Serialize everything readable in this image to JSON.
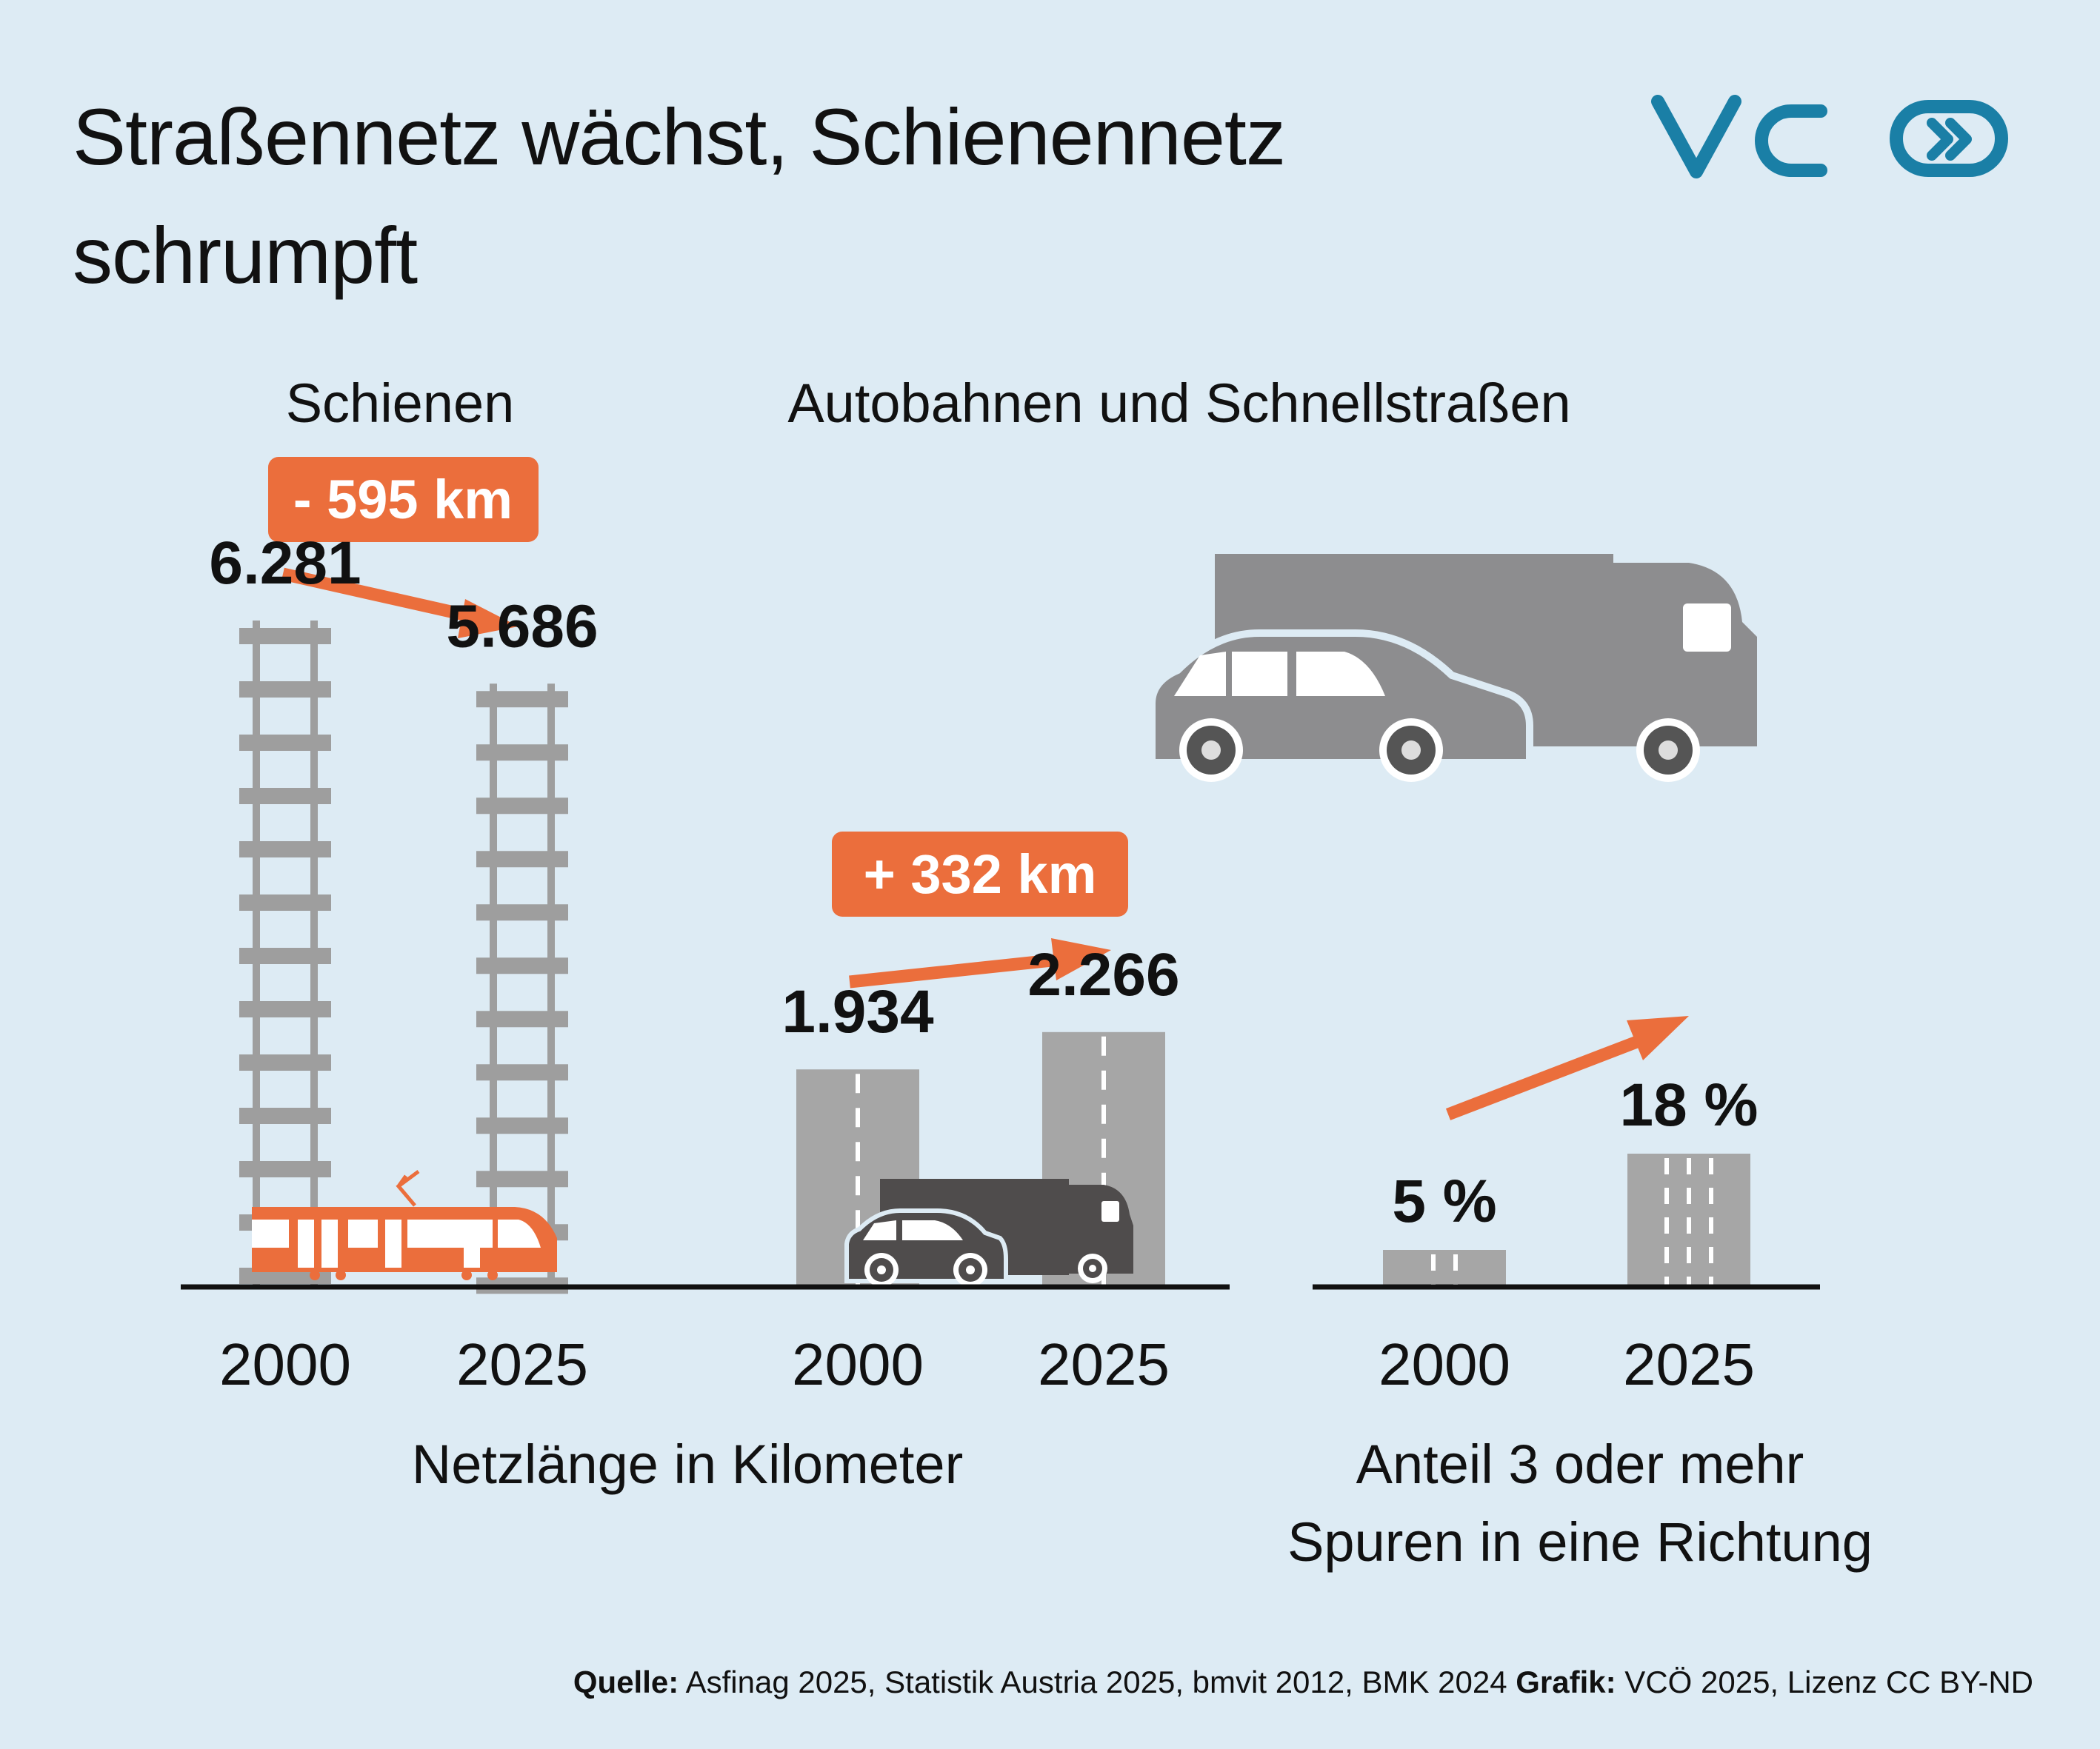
{
  "title": "Straßennetz wächst, Schienennetz schrumpft",
  "logo": {
    "text": "VCÖ",
    "color": "#1a7fa6",
    "icon": "double-chevron-icon"
  },
  "colors": {
    "background": "#ddebf4",
    "accent": "#eb6e3c",
    "bar": "#a6a6a6",
    "dark": "#4f4c4c",
    "track": "#9e9e9e"
  },
  "chart_data": [
    {
      "type": "bar",
      "title": "Schienen",
      "categories": [
        "2000",
        "2025"
      ],
      "values": [
        6281,
        5686
      ],
      "value_labels": [
        "6.281",
        "5.686"
      ],
      "change_label": "- 595 km",
      "icon": "train-icon"
    },
    {
      "type": "bar",
      "title": "Autobahnen und Schnellstraßen",
      "categories": [
        "2000",
        "2025"
      ],
      "values": [
        1934,
        2266
      ],
      "value_labels": [
        "1.934",
        "2.266"
      ],
      "change_label": "+ 332 km",
      "icon": "car-truck-icon"
    },
    {
      "type": "bar",
      "categories": [
        "2000",
        "2025"
      ],
      "values": [
        5,
        18
      ],
      "value_labels": [
        "5 %",
        "18 %"
      ],
      "unit": "%"
    }
  ],
  "axis_captions": {
    "km": "Netzlänge in Kilometer",
    "share": [
      "Anteil 3 oder mehr",
      "Spuren in eine Richtung"
    ]
  },
  "source": {
    "label1": "Quelle:",
    "text1": " Asfinag 2025, Statistik Austria 2025, bmvit 2012, BMK 2024 ",
    "label2": "Grafik:",
    "text2": " VCÖ 2025, Lizenz CC BY-ND"
  }
}
